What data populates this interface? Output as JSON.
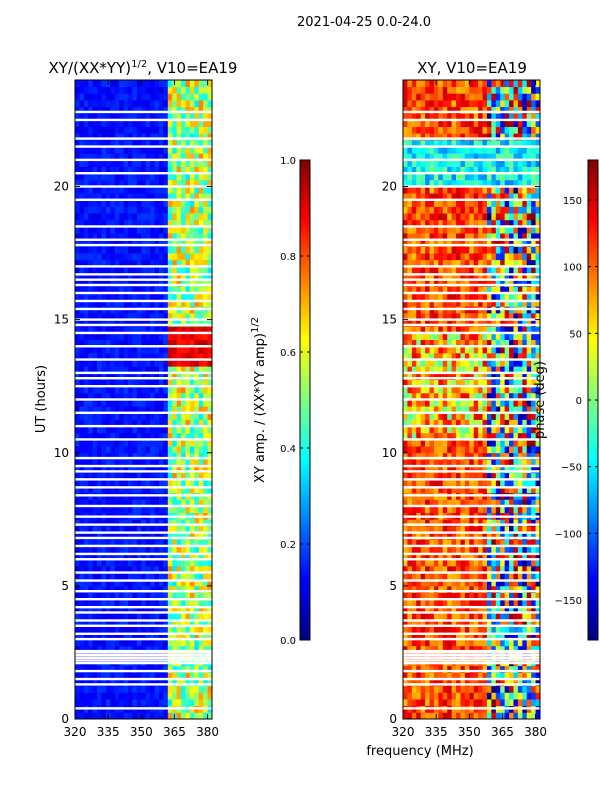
{
  "suptitle": "2021-04-25 0.0-24.0",
  "shared_xlabel": "frequency (MHz)",
  "colors": {
    "jet": [
      "#00007f",
      "#0000ff",
      "#007fff",
      "#00ffff",
      "#7fff7f",
      "#ffff00",
      "#ff7f00",
      "#ff0000",
      "#7f0000"
    ],
    "white": "#ffffff",
    "axis": "#000000"
  },
  "chart_data": [
    {
      "type": "heatmap",
      "title_main": "XY/(XX*YY)",
      "title_sup": "1/2",
      "title_tail": ", V10=EA19",
      "xlabel": "",
      "ylabel": "UT (hours)",
      "xlim": [
        320,
        382
      ],
      "ylim": [
        0,
        24
      ],
      "xticks": [
        "320",
        "335",
        "350",
        "365",
        "380"
      ],
      "yticks": [
        "0",
        "5",
        "10",
        "15",
        "20"
      ],
      "xtick_values": [
        320,
        335,
        350,
        365,
        380
      ],
      "ytick_values": [
        0,
        5,
        10,
        15,
        20
      ],
      "colorbar": {
        "label_main": "XY amp. / (XX*YY amp)",
        "label_sup": "1/2",
        "ticks": [
          "0.0",
          "0.2",
          "0.4",
          "0.6",
          "0.8",
          "1.0"
        ],
        "tick_values": [
          0,
          0.2,
          0.4,
          0.6,
          0.8,
          1.0
        ],
        "range": [
          0,
          1
        ]
      },
      "description_values": {
        "background_level": 0.1,
        "band_360_382_level": 0.55,
        "band_hot_hours": [
          13.2,
          14.8
        ],
        "band_hot_level": 0.85
      }
    },
    {
      "type": "heatmap",
      "title_main": "XY, V10=EA19",
      "xlabel": "frequency (MHz)",
      "ylabel": "",
      "xlim": [
        320,
        382
      ],
      "ylim": [
        0,
        24
      ],
      "xticks": [
        "320",
        "335",
        "350",
        "365",
        "380"
      ],
      "yticks": [
        "0",
        "5",
        "10",
        "15",
        "20"
      ],
      "xtick_values": [
        320,
        335,
        350,
        365,
        380
      ],
      "ytick_values": [
        0,
        5,
        10,
        15,
        20
      ],
      "colorbar": {
        "label_main": "phase (deg)",
        "ticks": [
          "−150",
          "−100",
          "−50",
          "0",
          "50",
          "100",
          "150"
        ],
        "tick_values": [
          -150,
          -100,
          -50,
          0,
          50,
          100,
          150
        ],
        "range": [
          -180,
          180
        ]
      }
    }
  ],
  "flagged_hours": [
    0.4,
    1.3,
    1.5,
    1.8,
    2.1,
    2.2,
    2.3,
    2.4,
    2.5,
    2.55,
    3.0,
    3.2,
    3.5,
    3.7,
    4.0,
    4.2,
    4.5,
    4.8,
    5.2,
    5.5,
    6.0,
    6.2,
    6.5,
    6.8,
    7.0,
    7.3,
    7.6,
    8.0,
    8.4,
    8.7,
    9.0,
    9.3,
    9.5,
    9.8,
    10.5,
    11.0,
    11.5,
    12.0,
    12.5,
    12.8,
    13.0,
    13.5,
    14.0,
    14.5,
    14.8,
    15.0,
    15.4,
    15.7,
    16.0,
    16.3,
    16.5,
    16.7,
    17.0,
    17.8,
    18.0,
    18.5,
    19.5,
    20.0,
    20.5,
    21.0,
    21.5,
    21.8,
    22.5,
    22.8
  ]
}
